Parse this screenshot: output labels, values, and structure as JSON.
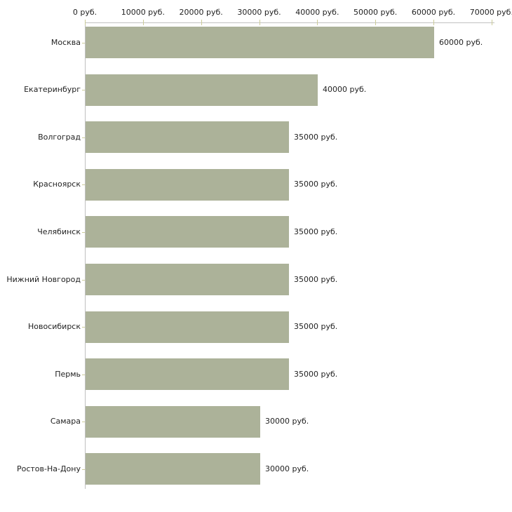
{
  "chart_data": {
    "type": "bar",
    "orientation": "horizontal",
    "categories": [
      "Москва",
      "Екатеринбург",
      "Волгоград",
      "Красноярск",
      "Челябинск",
      "Нижний Новгород",
      "Новосибирск",
      "Пермь",
      "Самара",
      "Ростов-На-Дону"
    ],
    "values": [
      60000,
      40000,
      35000,
      35000,
      35000,
      35000,
      35000,
      35000,
      30000,
      30000
    ],
    "value_labels": [
      "60000 руб.",
      "40000 руб.",
      "35000 руб.",
      "35000 руб.",
      "35000 руб.",
      "35000 руб.",
      "35000 руб.",
      "35000 руб.",
      "30000 руб.",
      "30000 руб."
    ],
    "x_ticks": [
      0,
      10000,
      20000,
      30000,
      40000,
      50000,
      60000,
      70000
    ],
    "x_tick_labels": [
      "0 руб.",
      "10000 руб.",
      "20000 руб.",
      "30000 руб.",
      "40000 руб.",
      "50000 руб.",
      "60000 руб.",
      "70000 руб."
    ],
    "xlim": [
      0,
      70000
    ],
    "unit": "руб.",
    "title": "",
    "xlabel": "",
    "ylabel": "",
    "grid": false,
    "legend": false,
    "colors": {
      "bar": "#acb299",
      "axis": "#c0c0c0",
      "tick_mark": "#cccc99",
      "text": "#222222",
      "background": "#ffffff"
    }
  }
}
